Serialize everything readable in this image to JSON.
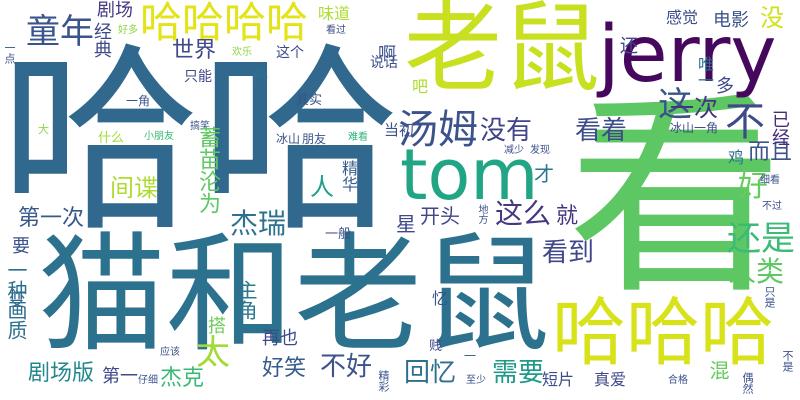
{
  "words": [
    {
      "text": "看",
      "color": "#5dc863"
    },
    {
      "text": "猫和老鼠",
      "color": "#2c728e"
    },
    {
      "text": "哈哈",
      "color": "#31688e"
    },
    {
      "text": "老鼠",
      "color": "#c8e020"
    },
    {
      "text": "jerry",
      "color": "#46085c"
    },
    {
      "text": "tom",
      "color": "#21a585"
    },
    {
      "text": "哈哈哈",
      "color": "#d8e219"
    },
    {
      "text": "哈哈哈哈",
      "color": "#e3e418"
    },
    {
      "text": "汤姆",
      "color": "#3b528b"
    },
    {
      "text": "童年",
      "color": "#39558c"
    },
    {
      "text": "不",
      "color": "#3e4a89"
    },
    {
      "text": "还是",
      "color": "#3bbb75"
    },
    {
      "text": "这",
      "color": "#3b528b"
    },
    {
      "text": "没有",
      "color": "#414487"
    },
    {
      "text": "看着",
      "color": "#3e4c8a"
    },
    {
      "text": "一次",
      "color": "#453581"
    },
    {
      "text": "这么",
      "color": "#453781"
    },
    {
      "text": "杰瑞",
      "color": "#2c728e"
    },
    {
      "text": "人类",
      "color": "#5ec962"
    },
    {
      "text": "好",
      "color": "#65cb5e"
    },
    {
      "text": "看到",
      "color": "#3f4788"
    },
    {
      "text": "太",
      "color": "#a2da37"
    },
    {
      "text": "需要",
      "color": "#1f998a"
    },
    {
      "text": "回忆",
      "color": "#2e6f8e"
    },
    {
      "text": "不好",
      "color": "#3b528b"
    },
    {
      "text": "好笑",
      "color": "#365c8d"
    },
    {
      "text": "第一次",
      "color": "#38588c"
    },
    {
      "text": "间谍",
      "color": "#addc30"
    },
    {
      "text": "剧场版",
      "color": "#24878e"
    },
    {
      "text": "杰克",
      "color": "#38b977"
    },
    {
      "text": "世界",
      "color": "#3f4889"
    },
    {
      "text": "电影",
      "color": "#3b528b"
    },
    {
      "text": "感觉",
      "color": "#3e4c8a"
    },
    {
      "text": "剧场",
      "color": "#443983"
    },
    {
      "text": "经典",
      "color": "#3e4989"
    },
    {
      "text": "没",
      "color": "#d0e11c"
    },
    {
      "text": "主角",
      "color": "#2a788e"
    },
    {
      "text": "开头",
      "color": "#404688"
    },
    {
      "text": "星",
      "color": "#3e4989"
    },
    {
      "text": "就",
      "color": "#46337f"
    },
    {
      "text": "人",
      "color": "#1fa088"
    },
    {
      "text": "才",
      "color": "#2a768e"
    },
    {
      "text": "多",
      "color": "#3f4889"
    },
    {
      "text": "而且",
      "color": "#3b528b"
    },
    {
      "text": "鸡",
      "color": "#2d708e"
    },
    {
      "text": "已经",
      "color": "#472d7b"
    },
    {
      "text": "一种画质",
      "color": "#2d708e"
    },
    {
      "text": "要",
      "color": "#3b528b"
    },
    {
      "text": "变",
      "color": "#31688e"
    },
    {
      "text": "第一",
      "color": "#3f4889"
    },
    {
      "text": "搭",
      "color": "#6ccd5a"
    },
    {
      "text": "再也",
      "color": "#3e4a89"
    },
    {
      "text": "蓄苗沦为",
      "color": "#5ec962"
    },
    {
      "text": "精华",
      "color": "#365c8d"
    },
    {
      "text": "吧",
      "color": "#addc30"
    },
    {
      "text": "啊",
      "color": "#3b528b"
    },
    {
      "text": "味道",
      "color": "#addc30"
    },
    {
      "text": "这个",
      "color": "#3e4a89"
    },
    {
      "text": "再",
      "color": "#2d708e"
    },
    {
      "text": "只能",
      "color": "#3e4989"
    },
    {
      "text": "还",
      "color": "#3f4889"
    },
    {
      "text": "唯一",
      "color": "#2c728e"
    },
    {
      "text": "说话",
      "color": "#3b528b"
    },
    {
      "text": "当初",
      "color": "#3b528b"
    },
    {
      "text": "真爱",
      "color": "#3f4889"
    },
    {
      "text": "短片",
      "color": "#3e4c8a"
    },
    {
      "text": "混",
      "color": "#65cb5e"
    },
    {
      "text": "贱",
      "color": "#3f4889"
    },
    {
      "text": "忆",
      "color": "#3b528b"
    },
    {
      "text": "一般",
      "color": "#3e4c8a"
    },
    {
      "text": "什么",
      "color": "#a2da37"
    },
    {
      "text": "其实",
      "color": "#3b528b"
    },
    {
      "text": "一角",
      "color": "#3b528b"
    },
    {
      "text": "欢乐",
      "color": "#8fd744"
    },
    {
      "text": "好多",
      "color": "#8fd744"
    },
    {
      "text": "看过",
      "color": "#3e4c8a"
    },
    {
      "text": "冰山",
      "color": "#3b528b"
    },
    {
      "text": "朋友",
      "color": "#3b528b"
    },
    {
      "text": "冰山一角",
      "color": "#3e4c8a"
    },
    {
      "text": "小朋友",
      "color": "#38b977"
    },
    {
      "text": "搞笑",
      "color": "#3b528b"
    },
    {
      "text": "难看",
      "color": "#2fb47c"
    },
    {
      "text": "发现",
      "color": "#3b528b"
    },
    {
      "text": "减少",
      "color": "#3e4c8a"
    },
    {
      "text": "细看",
      "color": "#3b528b"
    },
    {
      "text": "不过",
      "color": "#3e4c8a"
    },
    {
      "text": "只是",
      "color": "#3b528b"
    },
    {
      "text": "不是",
      "color": "#3b528b"
    },
    {
      "text": "偶然",
      "color": "#3b528b"
    },
    {
      "text": "合格",
      "color": "#3b528b"
    },
    {
      "text": "至少",
      "color": "#3b528b"
    },
    {
      "text": "精彩",
      "color": "#3b528b"
    },
    {
      "text": "仔细",
      "color": "#3b528b"
    },
    {
      "text": "应该",
      "color": "#3b528b"
    },
    {
      "text": "大",
      "color": "#8fd744"
    },
    {
      "text": "一点",
      "color": "#3b528b"
    },
    {
      "text": "地方",
      "color": "#3b528b"
    },
    {
      "text": "棒",
      "color": "#8fd744"
    },
    {
      "text": "一",
      "color": "#31688e"
    }
  ]
}
